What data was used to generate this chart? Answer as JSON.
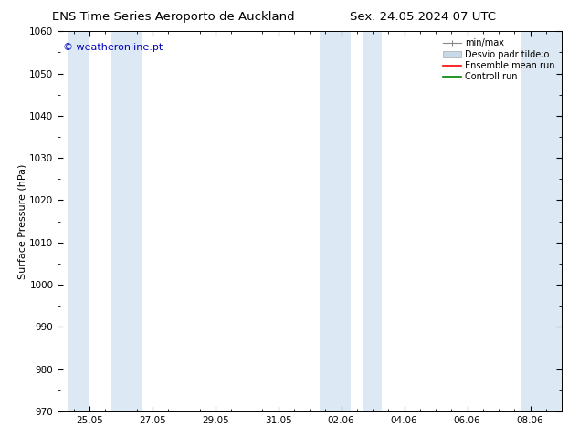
{
  "title_left": "ENS Time Series Aeroporto de Auckland",
  "title_right": "Sex. 24.05.2024 07 UTC",
  "ylabel": "Surface Pressure (hPa)",
  "ylim": [
    970,
    1060
  ],
  "yticks": [
    970,
    980,
    990,
    1000,
    1010,
    1020,
    1030,
    1040,
    1050,
    1060
  ],
  "xlim": [
    0,
    16
  ],
  "xtick_labels": [
    "25.05",
    "27.05",
    "29.05",
    "31.05",
    "02.06",
    "04.06",
    "06.06",
    "08.06"
  ],
  "xtick_positions": [
    1,
    3,
    5,
    7,
    9,
    11,
    13,
    15
  ],
  "shaded_bands": [
    {
      "start": 0.3,
      "end": 1.0
    },
    {
      "start": 1.7,
      "end": 2.7
    },
    {
      "start": 8.3,
      "end": 9.3
    },
    {
      "start": 9.7,
      "end": 10.3
    },
    {
      "start": 14.7,
      "end": 16.0
    }
  ],
  "shaded_color": "#dce9f5",
  "watermark": "© weatheronline.pt",
  "watermark_color": "#0000bb",
  "watermark_fontsize": 8,
  "legend_labels": [
    "min/max",
    "Desvio padr tilde;o",
    "Ensemble mean run",
    "Controll run"
  ],
  "legend_minmax_color": "#888888",
  "legend_desvio_color": "#c8daea",
  "legend_ensemble_color": "#ff0000",
  "legend_control_color": "#008000",
  "background_color": "#ffffff",
  "spine_color": "#000000",
  "title_fontsize": 9.5,
  "ylabel_fontsize": 8,
  "tick_fontsize": 7.5,
  "legend_fontsize": 7,
  "title_font": "DejaVu Sans",
  "minor_tick_every": 0.5
}
